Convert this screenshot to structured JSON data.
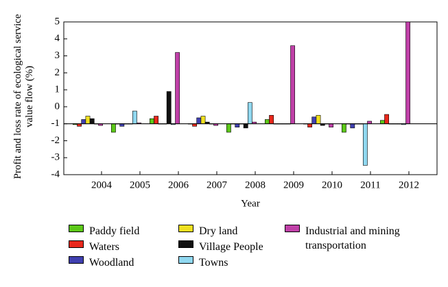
{
  "chart_data": {
    "type": "bar",
    "ylabel": "Profit and loss rate of ecological service value flow (%)",
    "xlabel": "Year",
    "categories": [
      "2004",
      "2005",
      "2006",
      "2007",
      "2008",
      "2009",
      "2010",
      "2011",
      "2012"
    ],
    "ylim": [
      -4,
      5
    ],
    "yticks": [
      -4,
      -3,
      -2,
      -1,
      0,
      1,
      2,
      3,
      4,
      5
    ],
    "baseline": -1,
    "series": [
      {
        "name": "Paddy field",
        "color": "#5cc818",
        "values": [
          -1.05,
          -1.5,
          -0.7,
          -1.0,
          -1.5,
          -0.75,
          -1.0,
          -1.5,
          -0.8
        ]
      },
      {
        "name": "Waters",
        "color": "#e8281c",
        "values": [
          -1.15,
          -1.0,
          -0.55,
          -1.15,
          -1.0,
          -0.5,
          -1.2,
          -1.0,
          -0.45
        ]
      },
      {
        "name": "Woodland",
        "color": "#4040b0",
        "values": [
          -0.75,
          -1.15,
          -1.0,
          -0.65,
          -1.2,
          -1.0,
          -0.6,
          -1.25,
          -1.0
        ]
      },
      {
        "name": "Dry land",
        "color": "#f0e020",
        "values": [
          -0.55,
          -1.0,
          -1.0,
          -0.55,
          -1.0,
          -1.0,
          -0.5,
          -1.0,
          -1.0
        ]
      },
      {
        "name": "Village People",
        "color": "#101010",
        "values": [
          -0.7,
          -1.0,
          0.9,
          -0.9,
          -1.25,
          -1.0,
          -1.1,
          -1.0,
          -1.0
        ]
      },
      {
        "name": "Towns",
        "color": "#90d8f0",
        "values": [
          -1.0,
          -0.25,
          -1.05,
          -1.0,
          0.25,
          -1.0,
          -1.0,
          -3.45,
          -1.05
        ]
      },
      {
        "name": "Industrial and mining transportation",
        "color": "#c040a8",
        "values": [
          -1.1,
          -0.95,
          3.2,
          -1.1,
          -0.9,
          3.6,
          -1.2,
          -0.85,
          5.0
        ]
      }
    ]
  }
}
